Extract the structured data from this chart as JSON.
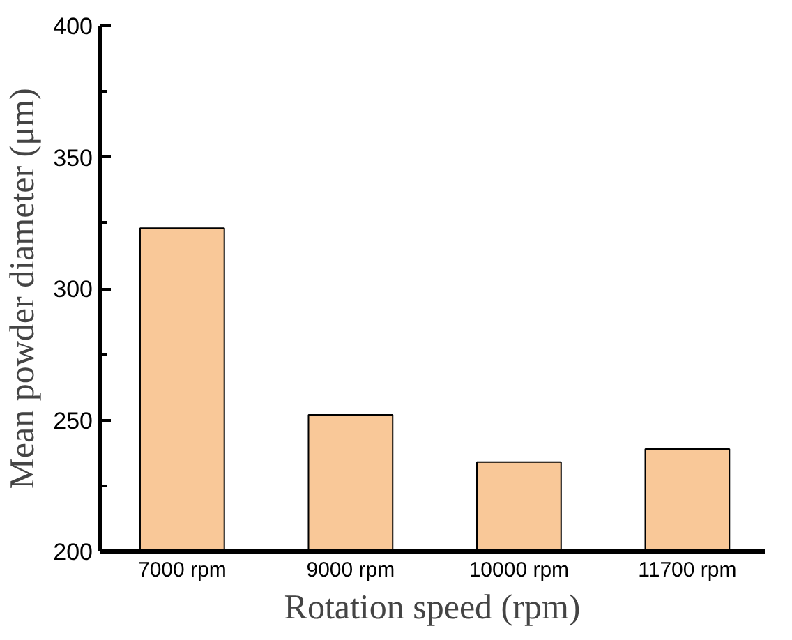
{
  "chart_data": {
    "type": "bar",
    "xlabel": "Rotation speed (rpm)",
    "ylabel": "Mean powder diameter (μm)",
    "categories": [
      "7000 rpm",
      "9000 rpm",
      "10000 rpm",
      "11700 rpm"
    ],
    "values": [
      323,
      252,
      234,
      239
    ],
    "color": "#f9c898",
    "ylim": [
      200,
      400
    ],
    "yticks": [
      200,
      250,
      300,
      350,
      400
    ],
    "grid": false
  }
}
